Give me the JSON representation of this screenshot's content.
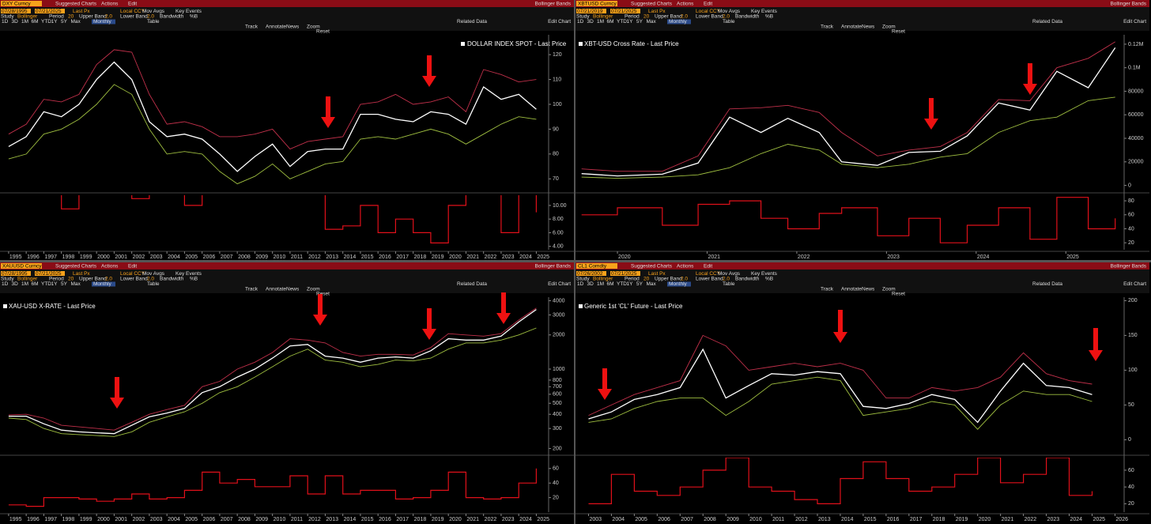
{
  "ui": {
    "suggested": "Suggested Charts",
    "actions": "Actions",
    "edit": "Edit",
    "study_name": "Bollinger Bands",
    "last_px": "Last Px",
    "ccy": "Local CCY",
    "mov_avgs": "Mov Avgs",
    "key_events": "Key Events",
    "study": "Study",
    "bollinger": "Bollinger",
    "period_label": "Period",
    "period": 20,
    "upper": "Upper Band",
    "upper_val": "2.0",
    "lower": "Lower Band",
    "lower_val": "2.0",
    "bandwidth": "Bandwidth",
    "pctb": "%B",
    "periods": [
      "1D",
      "3D",
      "1M",
      "6M",
      "YTD",
      "1Y",
      "5Y",
      "Max"
    ],
    "frequency": "Monthly",
    "table": "Table",
    "related": "Related Data",
    "edit_chart": "Edit Chart",
    "tools": [
      "Track",
      "Annotate",
      "News",
      "Zoom"
    ],
    "reset": "Reset"
  },
  "chart_data": [
    {
      "type": "line",
      "ticker": "DXY Curncy",
      "start_date": "07/28/1995",
      "end_date": "07/21/2025",
      "title": "DOLLAR INDEX SPOT - Last Price",
      "x": [
        1995,
        1996,
        1997,
        1998,
        1999,
        2000,
        2001,
        2002,
        2003,
        2004,
        2005,
        2006,
        2007,
        2008,
        2009,
        2010,
        2011,
        2012,
        2013,
        2014,
        2015,
        2016,
        2017,
        2018,
        2019,
        2020,
        2021,
        2022,
        2023,
        2024,
        2025
      ],
      "xlim": [
        1994.6,
        2025.7
      ],
      "xticks": [
        1995,
        1996,
        1997,
        1998,
        1999,
        2000,
        2001,
        2002,
        2003,
        2004,
        2005,
        2006,
        2007,
        2008,
        2009,
        2010,
        2011,
        2012,
        2013,
        2014,
        2015,
        2016,
        2017,
        2018,
        2019,
        2020,
        2021,
        2022,
        2023,
        2024,
        2025
      ],
      "ylim": [
        65,
        128
      ],
      "yticks": [
        70,
        80,
        90,
        100,
        110,
        120
      ],
      "log_scale": false,
      "series": [
        {
          "name": "DOLLAR INDEX SPOT - Last Price",
          "color": "#ffffff",
          "values": [
            83,
            87,
            97,
            95,
            100,
            110,
            117,
            110,
            93,
            87,
            88,
            86,
            80,
            73,
            79,
            84,
            75,
            81,
            82,
            82,
            96,
            96,
            94,
            93,
            97,
            96,
            92,
            107,
            102,
            104,
            98
          ]
        },
        {
          "color": "#c0304a",
          "values": [
            88,
            92,
            102,
            101,
            104,
            116,
            122,
            121,
            104,
            92,
            93,
            91,
            87,
            87,
            88,
            90,
            82,
            85,
            86,
            87,
            100,
            101,
            104,
            100,
            101,
            103,
            97,
            114,
            112,
            109,
            110
          ]
        },
        {
          "color": "#9fbf40",
          "values": [
            78,
            80,
            88,
            90,
            94,
            100,
            108,
            104,
            90,
            80,
            81,
            80,
            73,
            68,
            71,
            76,
            70,
            73,
            76,
            77,
            86,
            87,
            86,
            88,
            90,
            88,
            84,
            88,
            92,
            95,
            94
          ]
        }
      ],
      "bandwidth": {
        "color": "#e0101a",
        "values": [
          12,
          12,
          12,
          9.5,
          12,
          12,
          12,
          11,
          12,
          12,
          10,
          12,
          12,
          12,
          12,
          12,
          12,
          12,
          6.5,
          7,
          10,
          6,
          8,
          6,
          4.5,
          10,
          12,
          12,
          6,
          12,
          9
        ],
        "ylim": [
          3.5,
          11.5
        ],
        "yticks": [
          {
            "value": 4,
            "label": "4.00"
          },
          {
            "value": 6,
            "label": "6.00"
          },
          {
            "value": 8,
            "label": "8.00"
          },
          {
            "value": 10,
            "label": "10.00"
          }
        ]
      }
    },
    {
      "type": "line",
      "ticker": "XBTUSD Curncy",
      "start_date": "07/21/2019",
      "end_date": "07/21/2025",
      "title": "XBT-USD Cross Rate - Last Price",
      "x": [
        2019.6,
        2020.0,
        2020.5,
        2020.9,
        2021.25,
        2021.6,
        2021.9,
        2022.25,
        2022.5,
        2022.9,
        2023.25,
        2023.6,
        2023.9,
        2024.25,
        2024.6,
        2024.9,
        2025.25,
        2025.55
      ],
      "xlim": [
        2019.55,
        2025.65
      ],
      "xticks": [
        2020,
        2021,
        2022,
        2023,
        2024,
        2025
      ],
      "ylim": [
        -5000,
        128000
      ],
      "yticks": [
        0,
        20000,
        40000,
        60000,
        80000,
        {
          "value": 100000,
          "label": "0.1M"
        },
        {
          "value": 120000,
          "label": "0.12M"
        }
      ],
      "log_scale": false,
      "series": [
        {
          "name": "XBT-USD Cross Rate - Last Price",
          "color": "#ffffff",
          "values": [
            10000,
            8000,
            9500,
            19000,
            58000,
            45000,
            57000,
            45000,
            20000,
            17000,
            28000,
            29000,
            42000,
            70000,
            64000,
            97000,
            83000,
            117000
          ]
        },
        {
          "color": "#c0304a",
          "values": [
            14000,
            12000,
            12000,
            25000,
            65000,
            66000,
            68000,
            62000,
            45000,
            25000,
            30000,
            33000,
            45000,
            73000,
            72000,
            100000,
            108000,
            122000
          ]
        },
        {
          "color": "#9fbf40",
          "values": [
            7000,
            6000,
            7000,
            9000,
            15000,
            27000,
            35000,
            30000,
            18000,
            15000,
            18000,
            24000,
            27000,
            45000,
            55000,
            58000,
            72000,
            75000
          ]
        }
      ],
      "bandwidth": {
        "color": "#e0101a",
        "values": [
          60,
          70,
          45,
          75,
          80,
          55,
          40,
          62,
          70,
          30,
          55,
          20,
          45,
          70,
          25,
          85,
          40,
          55
        ],
        "ylim": [
          10,
          88
        ],
        "yticks": [
          20,
          40,
          60,
          80
        ]
      }
    },
    {
      "type": "line",
      "ticker": "XAUUSD Curncy",
      "start_date": "07/28/1995",
      "end_date": "07/21/2025",
      "title": "XAU-USD X-RATE - Last Price",
      "x": [
        1995,
        1996,
        1997,
        1998,
        1999,
        2000,
        2001,
        2002,
        2003,
        2004,
        2005,
        2006,
        2007,
        2008,
        2009,
        2010,
        2011,
        2012,
        2013,
        2014,
        2015,
        2016,
        2017,
        2018,
        2019,
        2020,
        2021,
        2022,
        2023,
        2024,
        2025
      ],
      "xlim": [
        1994.6,
        2025.7
      ],
      "xticks": [
        1995,
        1996,
        1997,
        1998,
        1999,
        2000,
        2001,
        2002,
        2003,
        2004,
        2005,
        2006,
        2007,
        2008,
        2009,
        2010,
        2011,
        2012,
        2013,
        2014,
        2015,
        2016,
        2017,
        2018,
        2019,
        2020,
        2021,
        2022,
        2023,
        2024,
        2025
      ],
      "ylim": [
        180,
        4300
      ],
      "yticks": [
        200,
        300,
        400,
        500,
        600,
        700,
        800,
        1000,
        2000,
        3000,
        4000
      ],
      "log_scale": true,
      "series": [
        {
          "name": "XAU-USD X-RATE - Last Price",
          "color": "#ffffff",
          "values": [
            385,
            385,
            330,
            290,
            280,
            275,
            270,
            320,
            380,
            410,
            450,
            620,
            700,
            850,
            1000,
            1250,
            1600,
            1650,
            1300,
            1250,
            1150,
            1250,
            1280,
            1250,
            1450,
            1850,
            1800,
            1800,
            1950,
            2600,
            3350
          ]
        },
        {
          "color": "#c0304a",
          "values": [
            395,
            400,
            370,
            320,
            310,
            300,
            290,
            340,
            400,
            440,
            480,
            700,
            780,
            1000,
            1150,
            1400,
            1850,
            1800,
            1700,
            1400,
            1300,
            1350,
            1350,
            1330,
            1550,
            2050,
            2000,
            1950,
            2050,
            2700,
            3450
          ]
        },
        {
          "color": "#9fbf40",
          "values": [
            370,
            360,
            300,
            270,
            265,
            260,
            255,
            280,
            340,
            380,
            420,
            500,
            620,
            700,
            850,
            1050,
            1300,
            1500,
            1200,
            1150,
            1050,
            1100,
            1200,
            1180,
            1250,
            1500,
            1700,
            1700,
            1800,
            2000,
            2300
          ]
        }
      ],
      "bandwidth": {
        "color": "#e0101a",
        "values": [
          10,
          8,
          20,
          20,
          18,
          15,
          18,
          25,
          18,
          20,
          30,
          55,
          40,
          45,
          35,
          35,
          50,
          25,
          50,
          25,
          30,
          30,
          18,
          20,
          30,
          55,
          20,
          18,
          20,
          40,
          60
        ],
        "ylim": [
          0,
          75
        ],
        "yticks": [
          20,
          40,
          60
        ]
      }
    },
    {
      "type": "line",
      "ticker": "CL1 Comdty",
      "start_date": "07/26/2002",
      "end_date": "07/21/2025",
      "title": "Generic 1st 'CL' Future - Last Price",
      "x": [
        2003,
        2004,
        2005,
        2006,
        2007,
        2008,
        2009,
        2010,
        2011,
        2012,
        2013,
        2014,
        2015,
        2016,
        2017,
        2018,
        2019,
        2020,
        2021,
        2022,
        2023,
        2024,
        2025
      ],
      "xlim": [
        2002.5,
        2026.4
      ],
      "xticks": [
        2003,
        2004,
        2005,
        2006,
        2007,
        2008,
        2009,
        2010,
        2011,
        2012,
        2013,
        2014,
        2015,
        2016,
        2017,
        2018,
        2019,
        2020,
        2021,
        2022,
        2023,
        2024,
        2025,
        2026
      ],
      "ylim": [
        -20,
        205
      ],
      "yticks": [
        0,
        50,
        100,
        150,
        200
      ],
      "log_scale": false,
      "series": [
        {
          "name": "Generic 1st 'CL' Future - Last Price",
          "color": "#ffffff",
          "values": [
            30,
            40,
            58,
            65,
            75,
            130,
            60,
            78,
            95,
            93,
            98,
            95,
            48,
            45,
            52,
            65,
            58,
            25,
            70,
            110,
            78,
            75,
            65
          ]
        },
        {
          "color": "#c0304a",
          "values": [
            35,
            50,
            65,
            75,
            85,
            150,
            135,
            100,
            105,
            110,
            105,
            110,
            100,
            60,
            60,
            75,
            70,
            75,
            90,
            125,
            95,
            85,
            80
          ]
        },
        {
          "color": "#9fbf40",
          "values": [
            25,
            30,
            45,
            55,
            60,
            60,
            35,
            55,
            80,
            85,
            90,
            85,
            35,
            40,
            45,
            55,
            50,
            15,
            50,
            70,
            65,
            65,
            55
          ]
        }
      ],
      "bandwidth": {
        "color": "#e0101a",
        "values": [
          20,
          55,
          35,
          30,
          40,
          60,
          75,
          40,
          35,
          25,
          20,
          50,
          70,
          50,
          35,
          40,
          55,
          75,
          45,
          55,
          75,
          30,
          35
        ],
        "ylim": [
          10,
          75
        ],
        "yticks": [
          20,
          40,
          60
        ]
      }
    }
  ]
}
